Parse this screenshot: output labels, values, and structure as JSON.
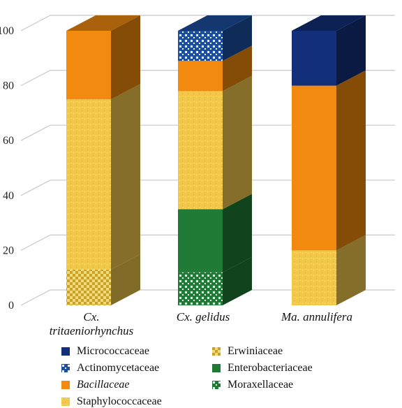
{
  "chart_data": {
    "type": "bar",
    "stacked": true,
    "three_d": true,
    "categories": [
      "Cx. tritaeniorhynchus",
      "Cx. gelidus",
      "Ma. annulifera"
    ],
    "category_lines": [
      [
        "Cx.",
        "tritaeniorhynchus"
      ],
      [
        "Cx. gelidus"
      ],
      [
        "Ma. annulifera"
      ]
    ],
    "ylim": [
      0,
      100
    ],
    "yticks": [
      "0",
      "20",
      "40",
      "60",
      "80",
      "100"
    ],
    "series": [
      {
        "name": "Moraxellaceae",
        "color": "#1e7a34",
        "pattern": "dots",
        "values": [
          0,
          12,
          0
        ]
      },
      {
        "name": "Erwiniaceae",
        "color": "#e8c24a",
        "pattern": "checker",
        "values": [
          13,
          0,
          0
        ]
      },
      {
        "name": "Enterobacteriaceae",
        "color": "#1e7a34",
        "pattern": "solid",
        "values": [
          0,
          23,
          0
        ]
      },
      {
        "name": "Staphylococcaceae",
        "color": "#f2c84b",
        "pattern": "speckle",
        "values": [
          62,
          43,
          20
        ]
      },
      {
        "name": "Bacillaceae",
        "color": "#f28a0f",
        "pattern": "solid",
        "italic": true,
        "values": [
          25,
          11,
          60
        ]
      },
      {
        "name": "Actinomycetaceae",
        "color": "#1c4fa0",
        "pattern": "dots",
        "values": [
          0,
          11,
          0
        ]
      },
      {
        "name": "Micrococcaceae",
        "color": "#132f7a",
        "pattern": "solid",
        "values": [
          0,
          0,
          20
        ]
      }
    ],
    "legend": [
      {
        "name": "Micrococcaceae",
        "series": "Micrococcaceae"
      },
      {
        "name": "Erwiniaceae",
        "series": "Erwiniaceae"
      },
      {
        "name": "Actinomycetaceae",
        "series": "Actinomycetaceae"
      },
      {
        "name": "Enterobacteriaceae",
        "series": "Enterobacteriaceae"
      },
      {
        "name": "Bacillaceae",
        "series": "Bacillaceae",
        "italic": true
      },
      {
        "name": "Moraxellaceae",
        "series": "Moraxellaceae"
      },
      {
        "name": "Staphylococcaceae",
        "series": "Staphylococcaceae"
      }
    ],
    "legend_position": "bottom",
    "grid": true
  }
}
